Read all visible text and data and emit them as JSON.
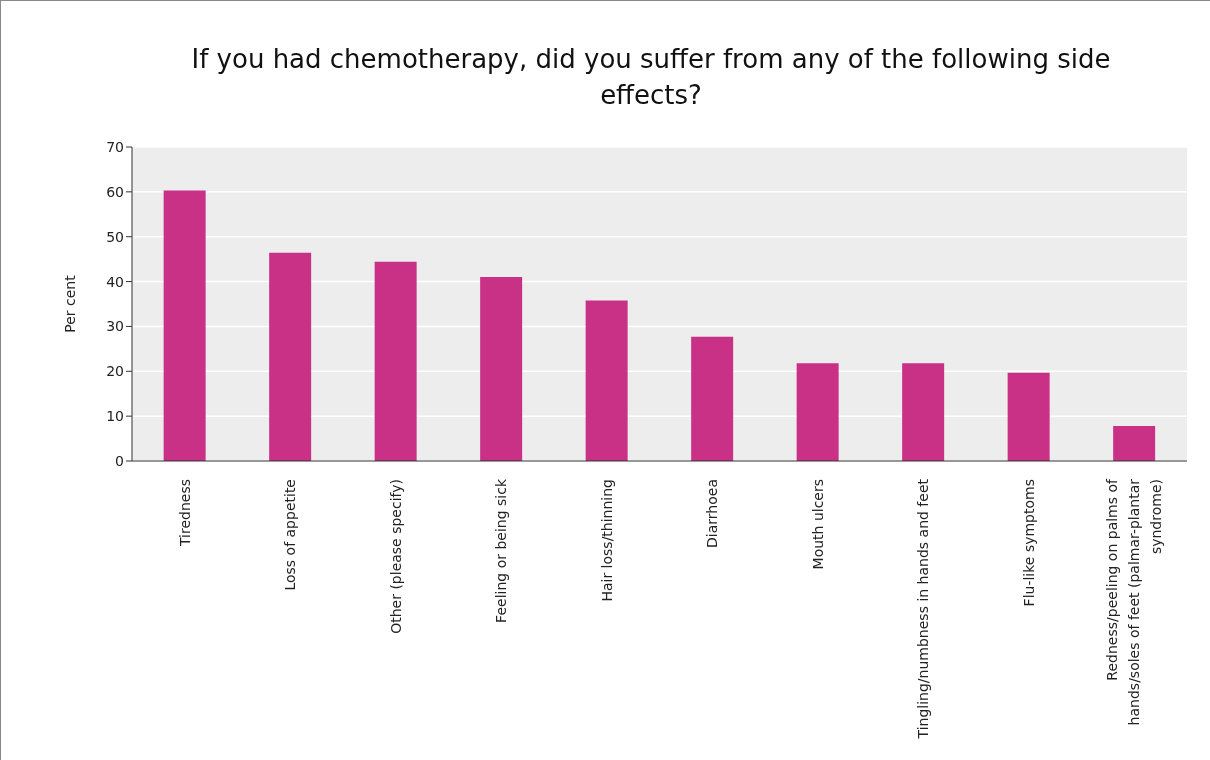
{
  "chart_data": {
    "type": "bar",
    "title": "If you had chemotherapy, did you suffer from any of the following side effects?",
    "ylabel": "Per cent",
    "categories": [
      "Tiredness",
      "Loss of appetite",
      "Other (please specify)",
      "Feeling or being sick",
      "Hair loss/thinning",
      "Diarrhoea",
      "Mouth ulcers",
      "Tingling/numbness in hands and feet",
      "Flu-like symptoms",
      "Redness/peeling on palms of hands/soles of feet (palmar-plantar syndrome)"
    ],
    "values": [
      60.3,
      46.4,
      44.4,
      41.0,
      35.8,
      27.7,
      21.8,
      21.8,
      19.7,
      7.8
    ],
    "color": "#c93186",
    "ylim": [
      0,
      70
    ],
    "yticks": [
      0,
      10,
      20,
      30,
      40,
      50,
      60,
      70
    ],
    "grid": "y"
  }
}
